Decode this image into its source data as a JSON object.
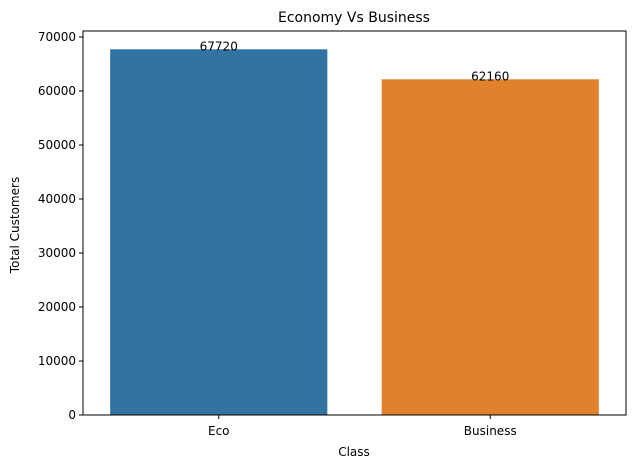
{
  "chart_data": {
    "type": "bar",
    "title": "Economy Vs Business",
    "xlabel": "Class",
    "ylabel": "Total Customers",
    "categories": [
      "Eco",
      "Business"
    ],
    "values": [
      67720,
      62160
    ],
    "data_labels": [
      "67720",
      "62160"
    ],
    "colors": [
      "#3274a1",
      "#e1812c"
    ],
    "ylim": [
      0,
      71106
    ],
    "yticks": [
      0,
      10000,
      20000,
      30000,
      40000,
      50000,
      60000,
      70000
    ],
    "ytick_labels": [
      "0",
      "10000",
      "20000",
      "30000",
      "40000",
      "50000",
      "60000",
      "70000"
    ],
    "grid": false,
    "legend": "none"
  }
}
